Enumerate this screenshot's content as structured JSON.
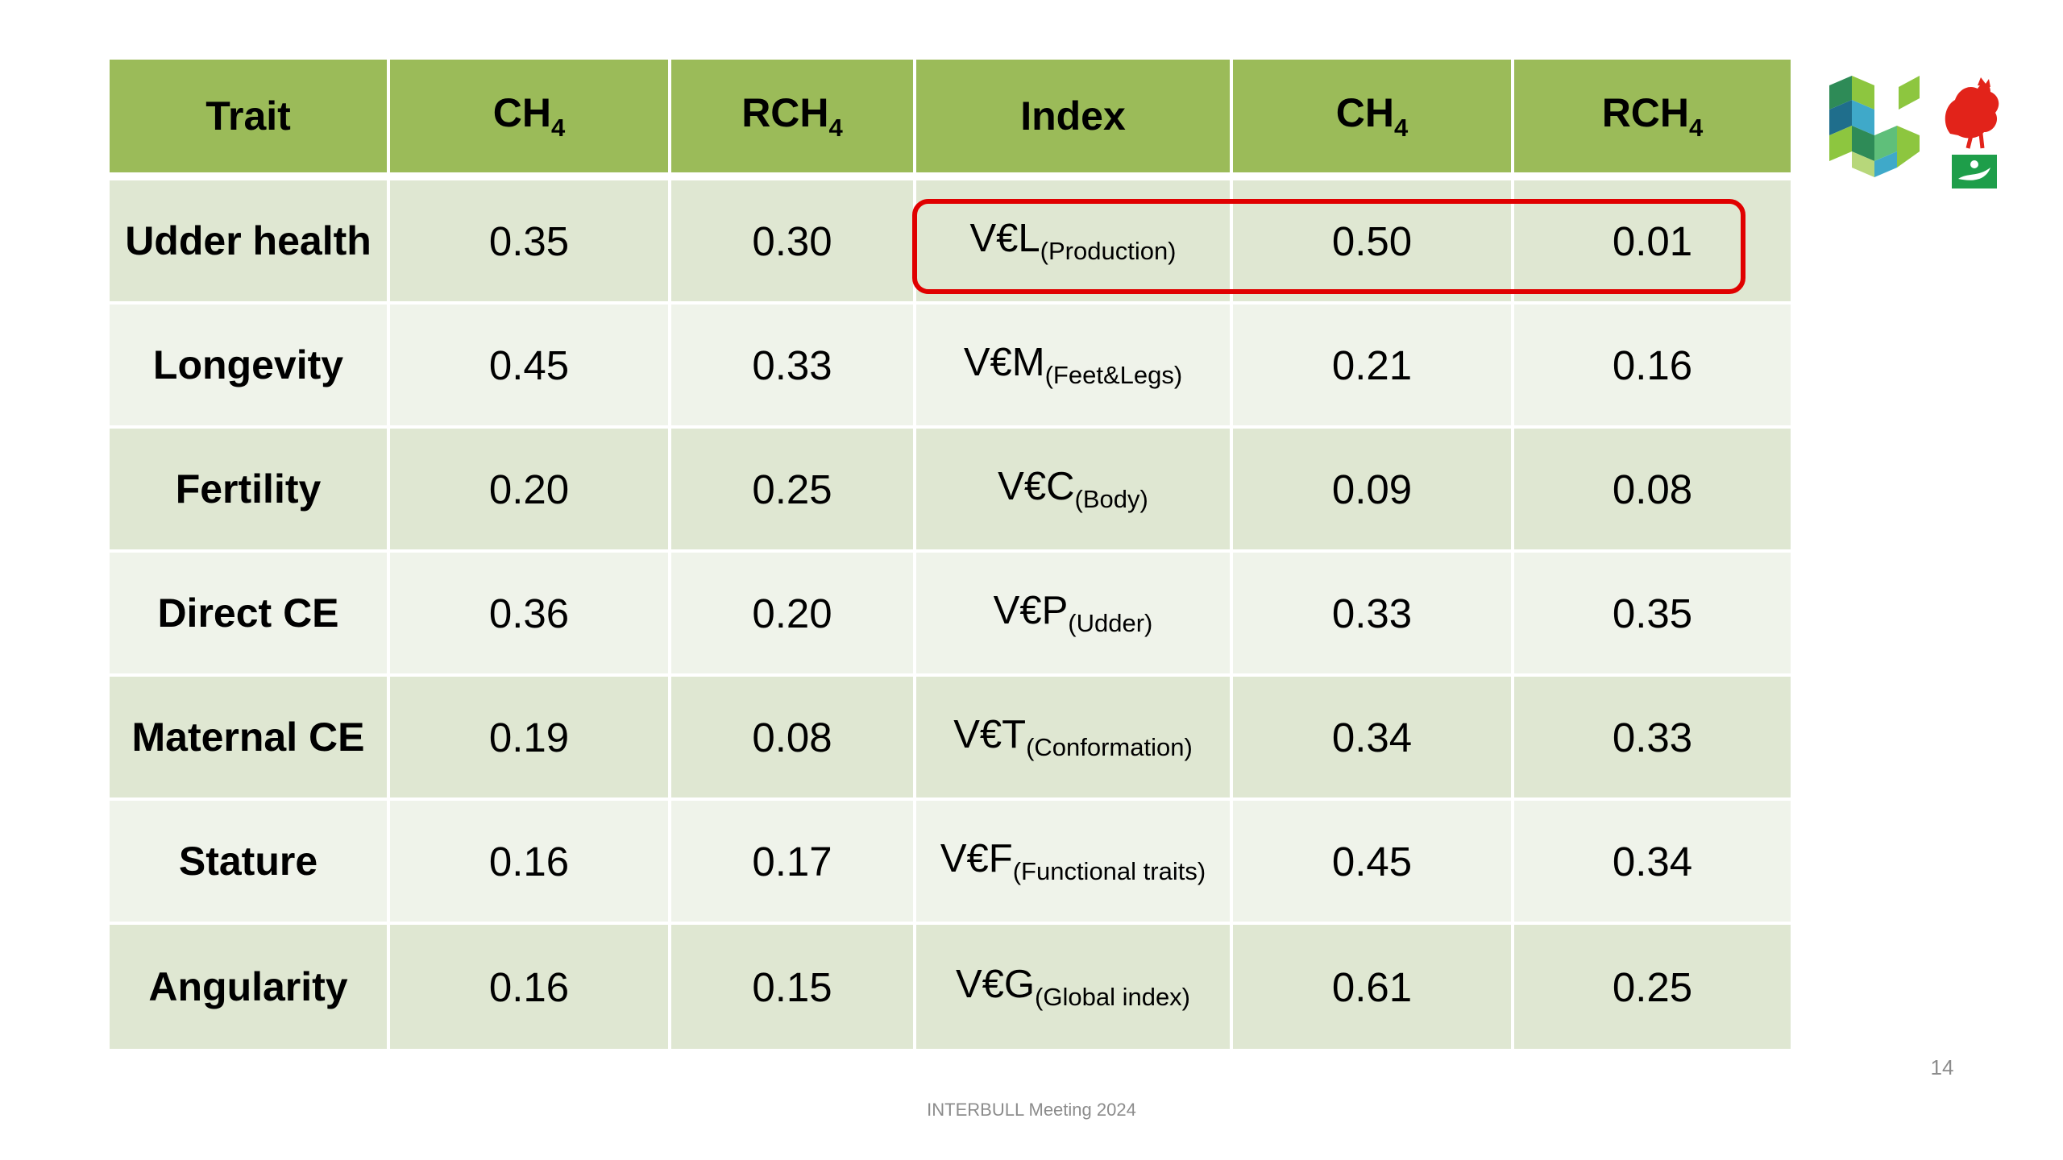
{
  "table": {
    "headers": [
      {
        "base": "Trait",
        "sub": ""
      },
      {
        "base": "CH",
        "sub": "4"
      },
      {
        "base": "RCH",
        "sub": "4"
      },
      {
        "base": "Index",
        "sub": ""
      },
      {
        "base": "CH",
        "sub": "4"
      },
      {
        "base": "RCH",
        "sub": "4"
      }
    ],
    "rows": [
      {
        "trait": "Udder health",
        "ch4": "0.35",
        "rch4": "0.30",
        "index": {
          "base": "V€L",
          "sub": "(Production)"
        },
        "index_ch4": "0.50",
        "index_rch4": "0.01"
      },
      {
        "trait": "Longevity",
        "ch4": "0.45",
        "rch4": "0.33",
        "index": {
          "base": "V€M",
          "sub": "(Feet&Legs)"
        },
        "index_ch4": "0.21",
        "index_rch4": "0.16"
      },
      {
        "trait": "Fertility",
        "ch4": "0.20",
        "rch4": "0.25",
        "index": {
          "base": "V€C",
          "sub": "(Body)"
        },
        "index_ch4": "0.09",
        "index_rch4": "0.08"
      },
      {
        "trait": "Direct CE",
        "ch4": "0.36",
        "rch4": "0.20",
        "index": {
          "base": "V€P",
          "sub": "(Udder)"
        },
        "index_ch4": "0.33",
        "index_rch4": "0.35"
      },
      {
        "trait": "Maternal CE",
        "ch4": "0.19",
        "rch4": "0.08",
        "index": {
          "base": "V€T",
          "sub": "(Conformation)"
        },
        "index_ch4": "0.34",
        "index_rch4": "0.33"
      },
      {
        "trait": "Stature",
        "ch4": "0.16",
        "rch4": "0.17",
        "index": {
          "base": "V€F",
          "sub": "(Functional traits)"
        },
        "index_ch4": "0.45",
        "index_rch4": "0.34"
      },
      {
        "trait": "Angularity",
        "ch4": "0.16",
        "rch4": "0.15",
        "index": {
          "base": "V€G",
          "sub": "(Global index)"
        },
        "index_ch4": "0.61",
        "index_rch4": "0.25"
      }
    ]
  },
  "highlight_color": "#e00000",
  "header_color": "#9bbb59",
  "row_colors": [
    "#dfe7d2",
    "#eff3ea"
  ],
  "logos": [
    "geometric-cubes-logo",
    "wallonia-rooster-logo",
    "green-emblem-logo"
  ],
  "page_number": "14",
  "footer": "INTERBULL Meeting 2024"
}
